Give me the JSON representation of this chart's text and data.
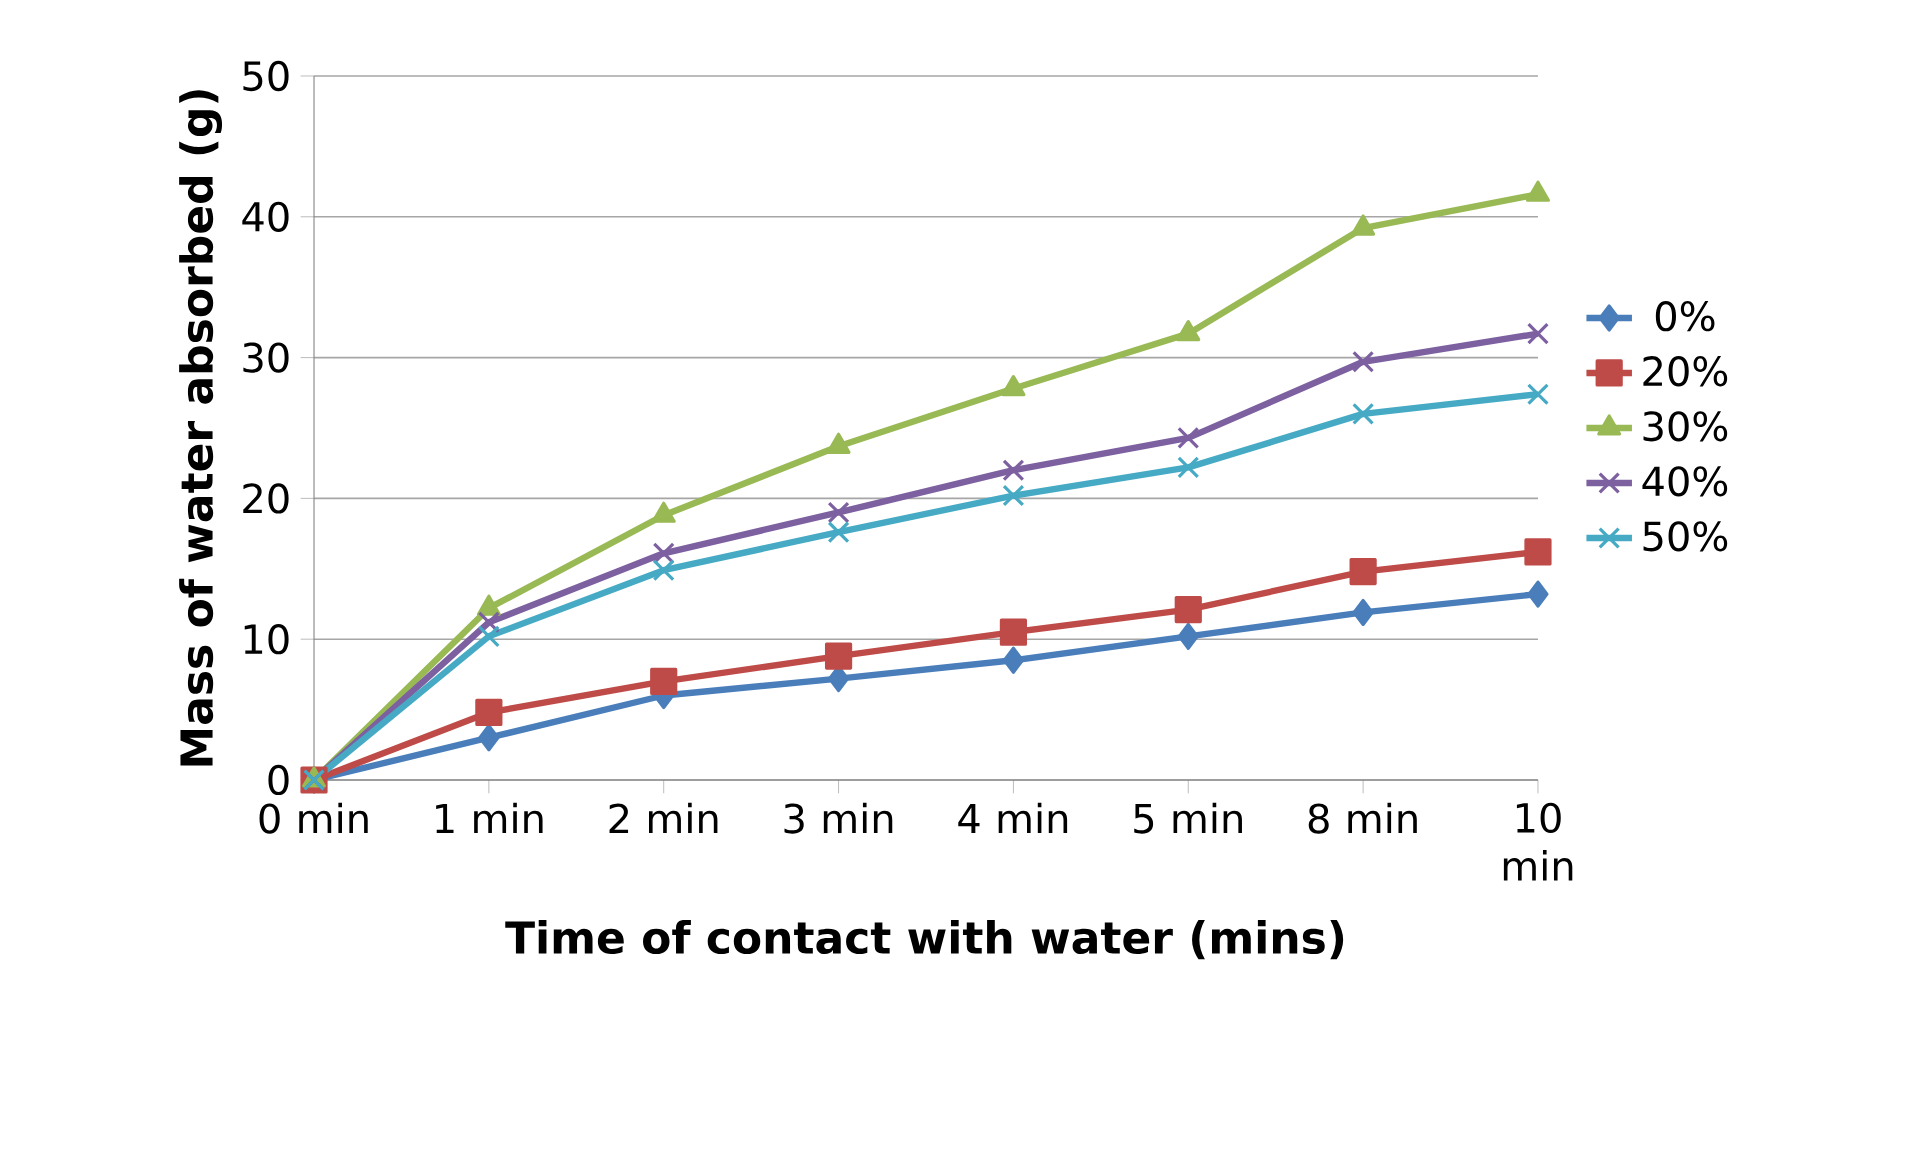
{
  "chart_data": {
    "type": "line",
    "xlabel": "Time of contact with water (mins)",
    "ylabel": "Mass of water absorbed (g)",
    "categories": [
      "0 min",
      "1 min",
      "2 min",
      "3 min",
      "4 min",
      "5 min",
      "8 min",
      "10 min"
    ],
    "series": [
      {
        "name": "0%",
        "color": "#4a7ebb",
        "marker": "diamond",
        "values": [
          0,
          3.0,
          6.0,
          7.2,
          8.5,
          10.2,
          11.9,
          13.2
        ]
      },
      {
        "name": "20%",
        "color": "#be4b48",
        "marker": "square",
        "values": [
          0,
          4.8,
          7.0,
          8.8,
          10.5,
          12.1,
          14.8,
          16.2
        ]
      },
      {
        "name": "30%",
        "color": "#98b954",
        "marker": "triangle",
        "values": [
          0,
          12.2,
          18.8,
          23.7,
          27.8,
          31.7,
          39.2,
          41.6
        ]
      },
      {
        "name": "40%",
        "color": "#7d60a0",
        "marker": "cross",
        "values": [
          0,
          11.2,
          16.1,
          19.0,
          22.0,
          24.3,
          29.7,
          31.7
        ]
      },
      {
        "name": "50%",
        "color": "#46aac5",
        "marker": "cross",
        "values": [
          0,
          10.2,
          14.9,
          17.6,
          20.2,
          22.2,
          26.0,
          27.4
        ]
      }
    ],
    "ylim": [
      0,
      50
    ],
    "yticks": [
      0,
      10,
      20,
      30,
      40,
      50
    ],
    "grid": "y",
    "legend": "right",
    "line_style": "solid"
  }
}
